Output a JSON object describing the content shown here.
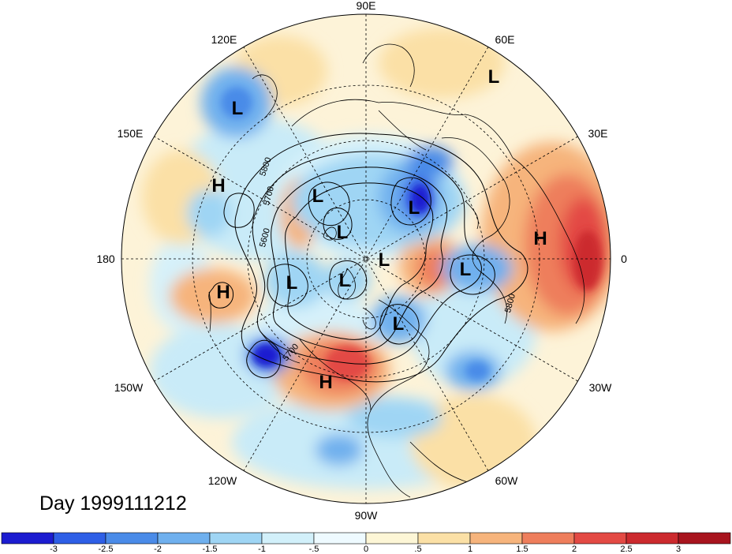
{
  "title": "Day 1999111212",
  "longitude_labels": [
    {
      "id": "90E",
      "text": "90E"
    },
    {
      "id": "60E",
      "text": "60E"
    },
    {
      "id": "30E",
      "text": "30E"
    },
    {
      "id": "0",
      "text": "0"
    },
    {
      "id": "30W",
      "text": "30W"
    },
    {
      "id": "60W",
      "text": "60W"
    },
    {
      "id": "90W",
      "text": "90W"
    },
    {
      "id": "120W",
      "text": "120W"
    },
    {
      "id": "150W",
      "text": "150W"
    },
    {
      "id": "180",
      "text": "180"
    },
    {
      "id": "150E",
      "text": "150E"
    },
    {
      "id": "120E",
      "text": "120E"
    }
  ],
  "contour_labels": [
    {
      "id": "c5800-nw",
      "text": "5800"
    },
    {
      "id": "c5700-w",
      "text": "5700"
    },
    {
      "id": "c5600-w",
      "text": "5600"
    },
    {
      "id": "c5700-s",
      "text": "5700"
    },
    {
      "id": "c5800-e",
      "text": "5800"
    }
  ],
  "pressure_systems": [
    {
      "id": "L1",
      "text": "L",
      "type": "low"
    },
    {
      "id": "L2",
      "text": "L",
      "type": "low"
    },
    {
      "id": "L3",
      "text": "L",
      "type": "low"
    },
    {
      "id": "L4",
      "text": "L",
      "type": "low"
    },
    {
      "id": "L5",
      "text": "L",
      "type": "low"
    },
    {
      "id": "L6",
      "text": "L",
      "type": "low"
    },
    {
      "id": "L7",
      "text": "L",
      "type": "low"
    },
    {
      "id": "L8",
      "text": "L",
      "type": "low"
    },
    {
      "id": "L9",
      "text": "L",
      "type": "low"
    },
    {
      "id": "L10",
      "text": "L",
      "type": "low"
    },
    {
      "id": "H1",
      "text": "H",
      "type": "high"
    },
    {
      "id": "H2",
      "text": "H",
      "type": "high"
    },
    {
      "id": "H3",
      "text": "H",
      "type": "high"
    },
    {
      "id": "H4",
      "text": "H",
      "type": "high"
    }
  ],
  "colorbar": {
    "ticks": [
      "-3",
      "-2.5",
      "-2",
      "-1.5",
      "-1",
      "-.5",
      "0",
      ".5",
      "1",
      "1.5",
      "2",
      "2.5",
      "3"
    ],
    "colors": [
      "#1c1cd0",
      "#2e5fe6",
      "#4a8be8",
      "#6fb0ee",
      "#9fd5f4",
      "#d2f0fa",
      "#eefaff",
      "#fdf6d6",
      "#fbe0a6",
      "#f6b47c",
      "#ee7e5c",
      "#e34a44",
      "#cc2a2e",
      "#a8141e"
    ]
  },
  "colors": {
    "background": "#ffffff",
    "line": "#000000"
  }
}
